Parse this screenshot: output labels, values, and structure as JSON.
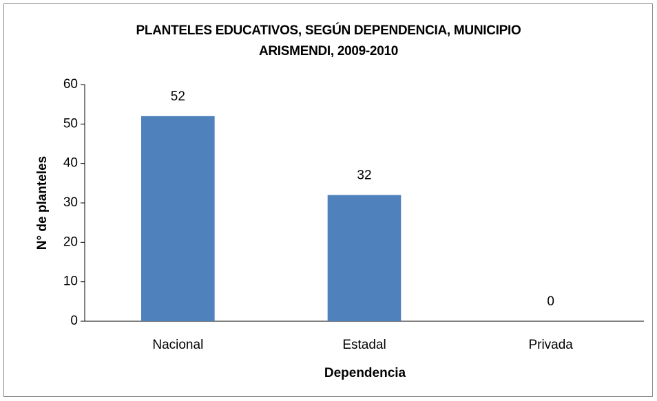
{
  "chart_data": {
    "type": "bar",
    "title": "PLANTELES EDUCATIVOS, SEGÚN DEPENDENCIA, MUNICIPIO ARISMENDI, 2009-2010",
    "x_label": "Dependencia",
    "y_label": "N° de planteles",
    "categories": [
      "Nacional",
      "Estadal",
      "Privada"
    ],
    "values": [
      52,
      32,
      0
    ],
    "color": "#4f81bd",
    "ylim": [
      0,
      60
    ],
    "yticks": [
      0,
      10,
      20,
      30,
      40,
      50,
      60
    ],
    "grid": false,
    "data_labels": true
  }
}
